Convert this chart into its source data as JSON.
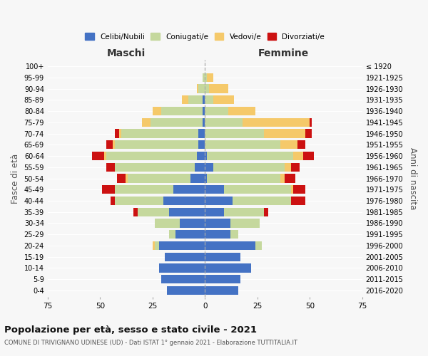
{
  "age_groups": [
    "0-4",
    "5-9",
    "10-14",
    "15-19",
    "20-24",
    "25-29",
    "30-34",
    "35-39",
    "40-44",
    "45-49",
    "50-54",
    "55-59",
    "60-64",
    "65-69",
    "70-74",
    "75-79",
    "80-84",
    "85-89",
    "90-94",
    "95-99",
    "100+"
  ],
  "birth_years": [
    "2016-2020",
    "2011-2015",
    "2006-2010",
    "2001-2005",
    "1996-2000",
    "1991-1995",
    "1986-1990",
    "1981-1985",
    "1976-1980",
    "1971-1975",
    "1966-1970",
    "1961-1965",
    "1956-1960",
    "1951-1955",
    "1946-1950",
    "1941-1945",
    "1936-1940",
    "1931-1935",
    "1926-1930",
    "1921-1925",
    "≤ 1920"
  ],
  "maschi": {
    "celibi": [
      18,
      21,
      22,
      19,
      22,
      14,
      12,
      17,
      20,
      15,
      7,
      5,
      4,
      3,
      3,
      1,
      1,
      1,
      0,
      0,
      0
    ],
    "coniugati": [
      0,
      0,
      0,
      0,
      2,
      3,
      12,
      15,
      23,
      28,
      30,
      38,
      43,
      40,
      37,
      25,
      20,
      7,
      3,
      1,
      0
    ],
    "vedovi": [
      0,
      0,
      0,
      0,
      1,
      0,
      0,
      0,
      0,
      0,
      1,
      0,
      1,
      1,
      1,
      4,
      4,
      3,
      1,
      0,
      0
    ],
    "divorziati": [
      0,
      0,
      0,
      0,
      0,
      0,
      0,
      2,
      2,
      6,
      4,
      4,
      6,
      3,
      2,
      0,
      0,
      0,
      0,
      0,
      0
    ]
  },
  "femmine": {
    "nubili": [
      16,
      17,
      22,
      17,
      24,
      12,
      12,
      9,
      13,
      9,
      1,
      4,
      1,
      0,
      0,
      0,
      0,
      0,
      0,
      0,
      0
    ],
    "coniugate": [
      0,
      0,
      0,
      0,
      3,
      4,
      14,
      19,
      28,
      32,
      35,
      34,
      41,
      36,
      28,
      18,
      11,
      4,
      2,
      1,
      0
    ],
    "vedove": [
      0,
      0,
      0,
      0,
      0,
      0,
      0,
      0,
      0,
      1,
      2,
      3,
      5,
      8,
      20,
      32,
      13,
      10,
      9,
      3,
      0
    ],
    "divorziate": [
      0,
      0,
      0,
      0,
      0,
      0,
      0,
      2,
      7,
      6,
      5,
      4,
      5,
      4,
      3,
      1,
      0,
      0,
      0,
      0,
      0
    ]
  },
  "colors": {
    "celibi": "#4472c4",
    "coniugati": "#c5d89d",
    "vedovi": "#f5c96a",
    "divorziati": "#cc1111"
  },
  "title": "Popolazione per età, sesso e stato civile - 2021",
  "subtitle": "COMUNE DI TRIVIGNANO UDINESE (UD) - Dati ISTAT 1° gennaio 2021 - Elaborazione TUTTITALIA.IT",
  "xlabel_left": "Maschi",
  "xlabel_right": "Femmine",
  "ylabel_left": "Fasce di età",
  "ylabel_right": "Anni di nascita",
  "xlim": 75,
  "legend_labels": [
    "Celibi/Nubili",
    "Coniugati/e",
    "Vedovi/e",
    "Divorziati/e"
  ],
  "bg_color": "#f7f7f7"
}
